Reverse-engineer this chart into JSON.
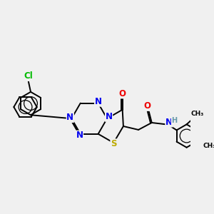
{
  "bg_color": "#f0f0f0",
  "atom_colors": {
    "C": "#000000",
    "N": "#0000ee",
    "O": "#ee0000",
    "S": "#bbaa00",
    "Cl": "#00bb00",
    "H": "#6699aa"
  },
  "bond_color": "#000000",
  "figsize": [
    3.0,
    3.0
  ],
  "dpi": 100
}
